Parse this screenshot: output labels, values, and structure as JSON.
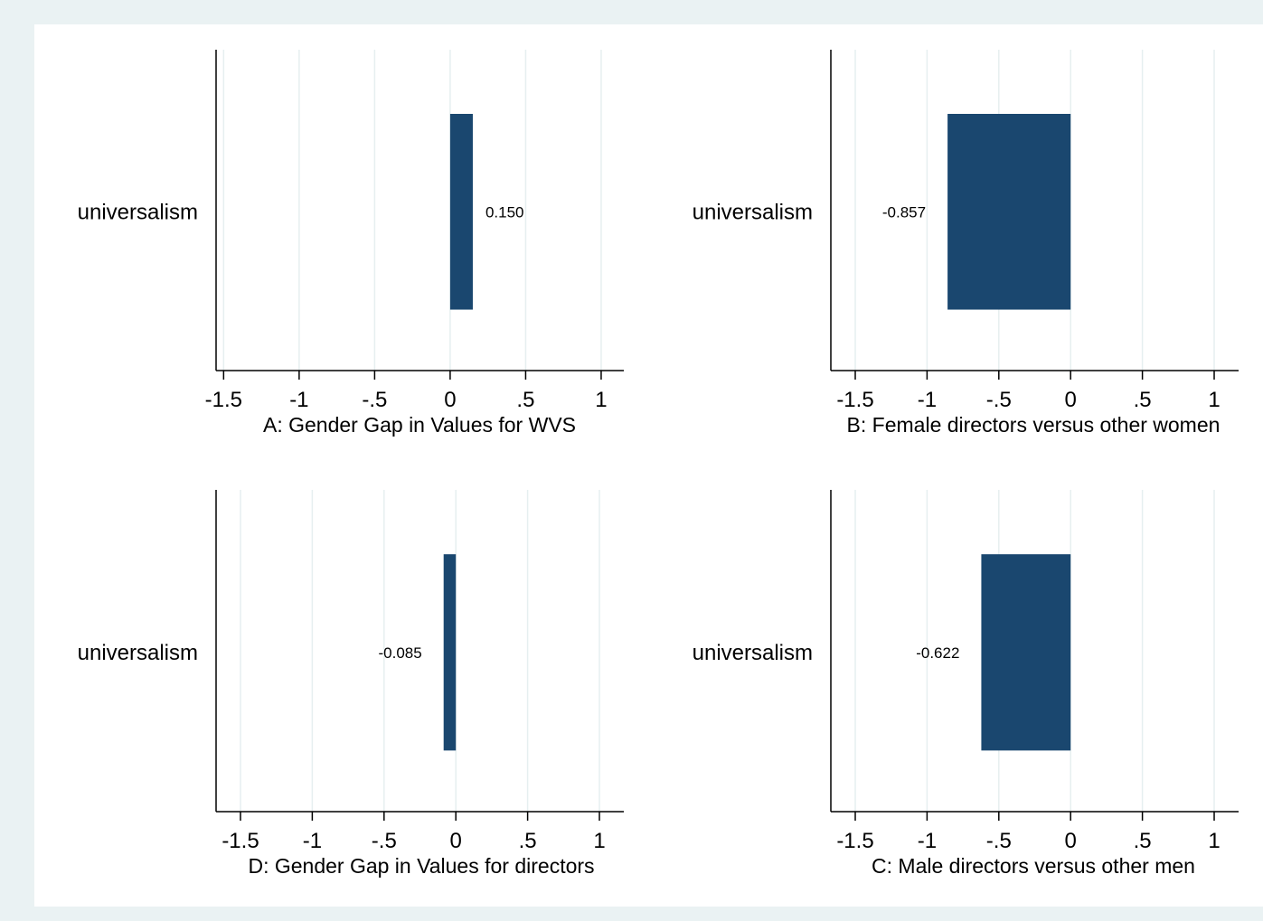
{
  "colors": {
    "outer_background": "#eaf2f3",
    "panel_background": "#ffffff",
    "bar_fill": "#1a476f",
    "gridline": "#e6eff0",
    "axis": "#000000"
  },
  "chart_data": [
    {
      "type": "bar",
      "orientation": "horizontal",
      "title": "A: Gender Gap in Values for WVS",
      "categories": [
        "universalism"
      ],
      "values": [
        0.15
      ],
      "value_labels": [
        "0.150"
      ],
      "xticks": [
        -1.5,
        -1,
        -0.5,
        0,
        0.5,
        1
      ],
      "xtick_labels": [
        "-1.5",
        "-1",
        "-.5",
        "0",
        ".5",
        "1"
      ],
      "xlim": [
        -1.55,
        1.15
      ],
      "grid": true
    },
    {
      "type": "bar",
      "orientation": "horizontal",
      "title": "B: Female directors versus other women",
      "categories": [
        "universalism"
      ],
      "values": [
        -0.857
      ],
      "value_labels": [
        "-0.857"
      ],
      "xticks": [
        -1.5,
        -1,
        -0.5,
        0,
        0.5,
        1
      ],
      "xtick_labels": [
        "-1.5",
        "-1",
        "-.5",
        "0",
        ".5",
        "1"
      ],
      "xlim": [
        -1.67,
        1.17
      ],
      "grid": true
    },
    {
      "type": "bar",
      "orientation": "horizontal",
      "title": "D: Gender Gap in Values for directors",
      "categories": [
        "universalism"
      ],
      "values": [
        -0.085
      ],
      "value_labels": [
        "-0.085"
      ],
      "xticks": [
        -1.5,
        -1,
        -0.5,
        0,
        0.5,
        1
      ],
      "xtick_labels": [
        "-1.5",
        "-1",
        "-.5",
        "0",
        ".5",
        "1"
      ],
      "xlim": [
        -1.67,
        1.17
      ],
      "grid": true
    },
    {
      "type": "bar",
      "orientation": "horizontal",
      "title": "C: Male directors versus other men",
      "categories": [
        "universalism"
      ],
      "values": [
        -0.622
      ],
      "value_labels": [
        "-0.622"
      ],
      "xticks": [
        -1.5,
        -1,
        -0.5,
        0,
        0.5,
        1
      ],
      "xtick_labels": [
        "-1.5",
        "-1",
        "-.5",
        "0",
        ".5",
        "1"
      ],
      "xlim": [
        -1.67,
        1.17
      ],
      "grid": true
    }
  ]
}
